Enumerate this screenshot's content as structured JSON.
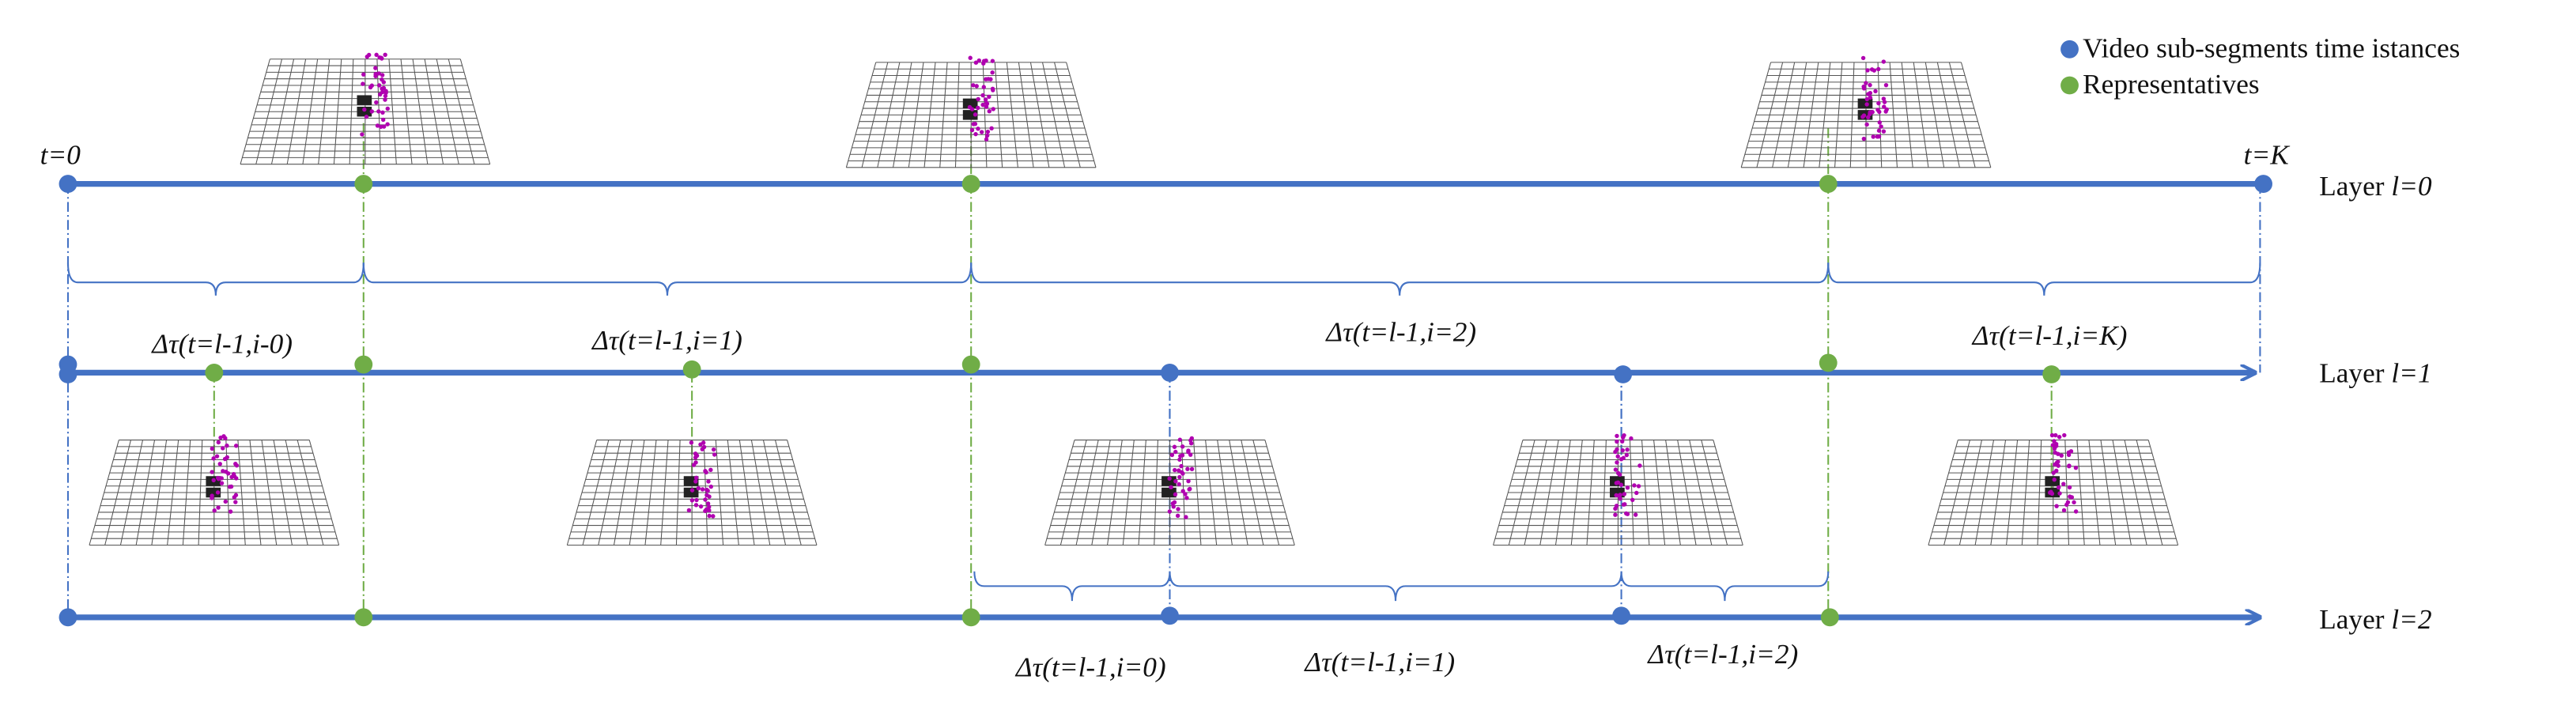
{
  "legend": [
    {
      "label": "Video sub-segments time istances"
    },
    {
      "label": "Representatives"
    }
  ],
  "time_labels": {
    "start": "t=0",
    "end": "t=K"
  },
  "layers": [
    {
      "word": "Layer",
      "index": "l=0"
    },
    {
      "word": "Layer",
      "index": "l=1"
    },
    {
      "word": "Layer",
      "index": "l=2"
    }
  ],
  "intervals": {
    "layer_1": [
      "Δτ(t=l-1,i-0)",
      "Δτ(t=l-1,i=1)",
      "Δτ(t=l-1,i=2)",
      "Δτ(t=l-1,i=K)"
    ],
    "layer_2": [
      "Δτ(t=l-1,i=0)",
      "Δτ(t=l-1,i=1)",
      "Δτ(t=l-1,i=2)"
    ]
  }
}
